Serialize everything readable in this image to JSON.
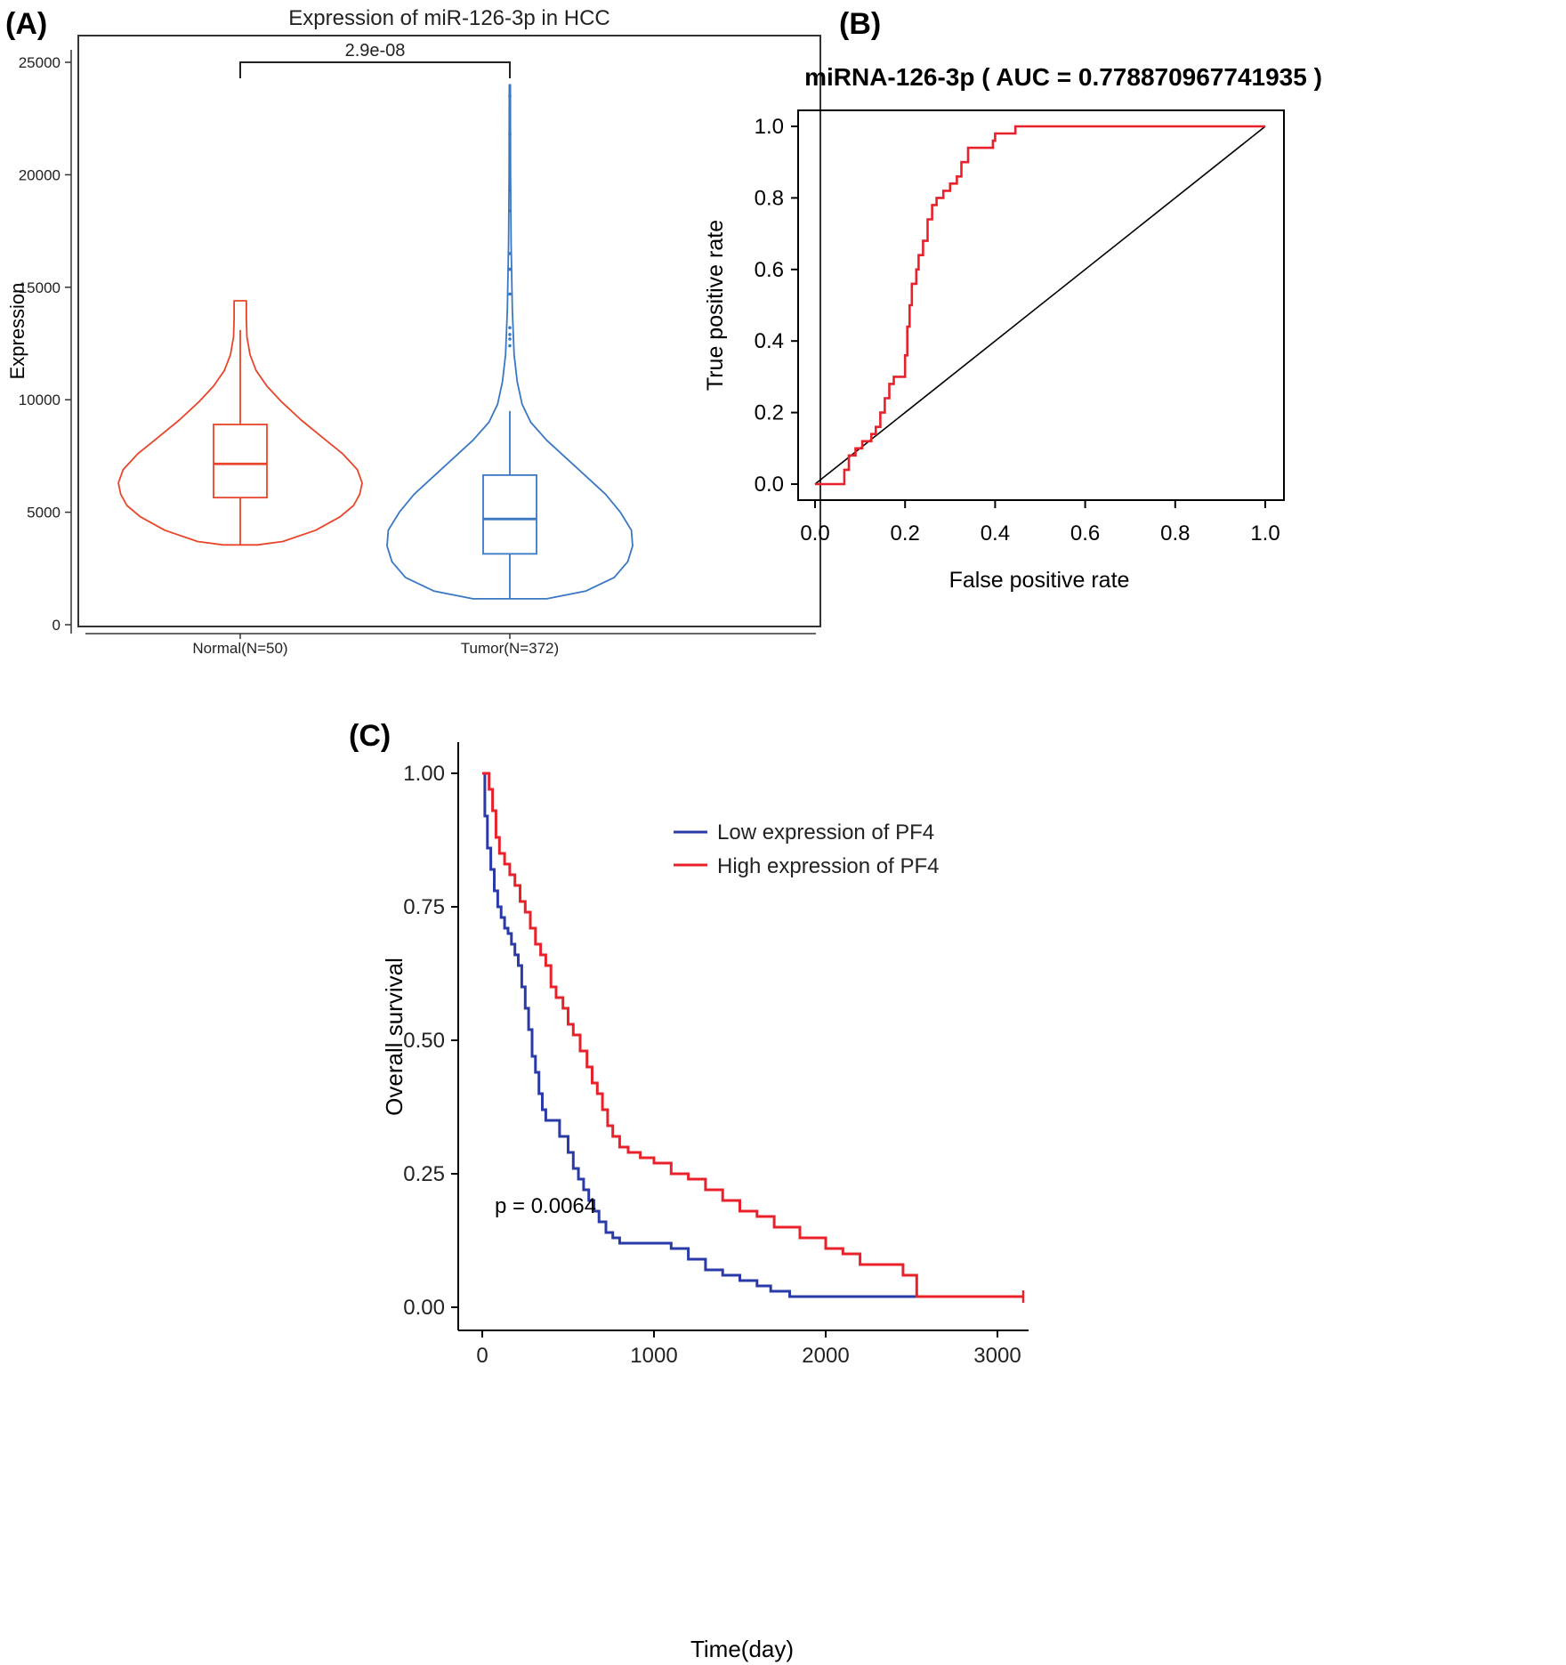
{
  "panels": {
    "A": "(A)",
    "B": "(B)",
    "C": "(C)"
  },
  "chart_data": [
    {
      "id": "A",
      "type": "violin",
      "title": "Expression of miR-126-3p in HCC",
      "ylabel": "Expression",
      "xlabel": "",
      "ylim": [
        0,
        26000
      ],
      "yticks": [
        0,
        5000,
        10000,
        15000,
        20000,
        25000
      ],
      "ytick_labels": [
        "0",
        "5000",
        "10000",
        "15000",
        "20000",
        "25000"
      ],
      "categories": [
        "Normal(N=50)",
        "Tumor(N=372)"
      ],
      "significance": {
        "label": "2.9e-08",
        "y": 25000
      },
      "groups": [
        {
          "name": "Normal(N=50)",
          "color": "#e8452a",
          "box": {
            "whisker_low": 3550,
            "q1": 5650,
            "median": 7150,
            "q3": 8900,
            "whisker_high": 13100
          },
          "max": 14400,
          "violin_width": [
            [
              3550,
              0.14
            ],
            [
              3700,
              0.35
            ],
            [
              4200,
              0.62
            ],
            [
              4800,
              0.82
            ],
            [
              5300,
              0.93
            ],
            [
              5800,
              0.98
            ],
            [
              6300,
              1.0
            ],
            [
              6900,
              0.96
            ],
            [
              7600,
              0.84
            ],
            [
              8300,
              0.68
            ],
            [
              9100,
              0.5
            ],
            [
              9900,
              0.34
            ],
            [
              10600,
              0.22
            ],
            [
              11300,
              0.13
            ],
            [
              12000,
              0.08
            ],
            [
              12800,
              0.055
            ],
            [
              13600,
              0.05
            ],
            [
              14300,
              0.05
            ],
            [
              14400,
              0.05
            ]
          ],
          "outliers": []
        },
        {
          "name": "Tumor(N=372)",
          "color": "#3a78c4",
          "box": {
            "whisker_low": 1150,
            "q1": 3150,
            "median": 4700,
            "q3": 6650,
            "whisker_high": 9500
          },
          "max": 24000,
          "violin_width": [
            [
              1150,
              0.3
            ],
            [
              1500,
              0.62
            ],
            [
              2100,
              0.85
            ],
            [
              2800,
              0.96
            ],
            [
              3500,
              1.0
            ],
            [
              4200,
              0.99
            ],
            [
              5000,
              0.9
            ],
            [
              5800,
              0.78
            ],
            [
              6600,
              0.62
            ],
            [
              7400,
              0.46
            ],
            [
              8200,
              0.3
            ],
            [
              9000,
              0.17
            ],
            [
              9800,
              0.1
            ],
            [
              10800,
              0.06
            ],
            [
              12000,
              0.035
            ],
            [
              14000,
              0.02
            ],
            [
              17000,
              0.01
            ],
            [
              20000,
              0.006
            ],
            [
              24000,
              0.004
            ]
          ],
          "outliers": [
            12400,
            12700,
            12900,
            13200,
            14700,
            15800,
            16500,
            18400,
            19300,
            21800,
            23500
          ]
        }
      ]
    },
    {
      "id": "B",
      "type": "line",
      "title": "miRNA-126-3p ( AUC =  0.778870967741935 )",
      "xlabel": "False positive rate",
      "ylabel": "True positive rate",
      "xlim": [
        0,
        1
      ],
      "ylim": [
        0,
        1
      ],
      "xticks": [
        0,
        0.2,
        0.4,
        0.6,
        0.8,
        1
      ],
      "xtick_labels": [
        "0.0",
        "0.2",
        "0.4",
        "0.6",
        "0.8",
        "1.0"
      ],
      "yticks": [
        0,
        0.2,
        0.4,
        0.6,
        0.8,
        1
      ],
      "ytick_labels": [
        "0.0",
        "0.2",
        "0.4",
        "0.6",
        "0.8",
        "1.0"
      ],
      "series": [
        {
          "color": "#e8212a",
          "x": [
            0,
            0.065,
            0.065,
            0.075,
            0.075,
            0.09,
            0.09,
            0.105,
            0.105,
            0.125,
            0.125,
            0.135,
            0.135,
            0.145,
            0.145,
            0.155,
            0.155,
            0.165,
            0.165,
            0.175,
            0.175,
            0.2,
            0.2,
            0.205,
            0.205,
            0.21,
            0.21,
            0.215,
            0.215,
            0.225,
            0.225,
            0.23,
            0.23,
            0.24,
            0.24,
            0.25,
            0.25,
            0.26,
            0.26,
            0.27,
            0.27,
            0.285,
            0.285,
            0.3,
            0.3,
            0.315,
            0.315,
            0.325,
            0.325,
            0.34,
            0.34,
            0.395,
            0.395,
            0.4,
            0.4,
            0.41,
            0.41,
            0.445,
            0.445,
            1
          ],
          "y": [
            0,
            0,
            0.04,
            0.04,
            0.08,
            0.08,
            0.1,
            0.1,
            0.12,
            0.12,
            0.14,
            0.14,
            0.16,
            0.16,
            0.2,
            0.2,
            0.24,
            0.24,
            0.28,
            0.28,
            0.3,
            0.3,
            0.36,
            0.36,
            0.44,
            0.44,
            0.5,
            0.5,
            0.56,
            0.56,
            0.6,
            0.6,
            0.64,
            0.64,
            0.68,
            0.68,
            0.74,
            0.74,
            0.78,
            0.78,
            0.8,
            0.8,
            0.82,
            0.82,
            0.84,
            0.84,
            0.86,
            0.86,
            0.9,
            0.9,
            0.94,
            0.94,
            0.96,
            0.96,
            0.98,
            0.98,
            0.98,
            0.98,
            1.0,
            1.0
          ]
        },
        {
          "color": "#000000",
          "x": [
            0,
            1
          ],
          "y": [
            0,
            1
          ]
        }
      ]
    },
    {
      "id": "C",
      "type": "line",
      "title": "",
      "xlabel": "Time(day)",
      "ylabel": "Overall survival",
      "xlim": [
        -130,
        3150
      ],
      "ylim": [
        -0.06,
        1.06
      ],
      "xticks": [
        0,
        1000,
        2000,
        3000
      ],
      "xtick_labels": [
        "0",
        "1000",
        "2000",
        "3000"
      ],
      "yticks": [
        0,
        0.25,
        0.5,
        0.75,
        1
      ],
      "ytick_labels": [
        "0.00",
        "0.25",
        "0.50",
        "0.75",
        "1.00"
      ],
      "annotation": "p = 0.0064",
      "legend": {
        "position": "top-right"
      },
      "series": [
        {
          "name": "Low expression of PF4",
          "color": "#2a3aa8",
          "x": [
            0,
            15,
            30,
            50,
            70,
            90,
            110,
            130,
            150,
            170,
            190,
            210,
            230,
            250,
            270,
            290,
            310,
            330,
            350,
            370,
            390,
            410,
            450,
            500,
            530,
            560,
            590,
            620,
            650,
            680,
            720,
            760,
            800,
            860,
            950,
            1100,
            1200,
            1300,
            1400,
            1500,
            1600,
            1680,
            1790,
            2540,
            3150
          ],
          "y": [
            1.0,
            0.92,
            0.86,
            0.82,
            0.78,
            0.75,
            0.73,
            0.71,
            0.7,
            0.68,
            0.66,
            0.64,
            0.6,
            0.56,
            0.52,
            0.47,
            0.44,
            0.4,
            0.37,
            0.35,
            0.35,
            0.35,
            0.32,
            0.29,
            0.26,
            0.24,
            0.22,
            0.2,
            0.18,
            0.16,
            0.14,
            0.13,
            0.12,
            0.12,
            0.12,
            0.11,
            0.09,
            0.07,
            0.06,
            0.05,
            0.04,
            0.03,
            0.02,
            0.02,
            0.02
          ]
        },
        {
          "name": "High expression of PF4",
          "color": "#e8212a",
          "x": [
            0,
            20,
            40,
            60,
            80,
            100,
            130,
            160,
            190,
            220,
            250,
            280,
            310,
            340,
            370,
            400,
            430,
            470,
            500,
            530,
            570,
            610,
            640,
            670,
            700,
            730,
            760,
            800,
            850,
            920,
            1000,
            1100,
            1200,
            1300,
            1400,
            1500,
            1600,
            1700,
            1850,
            2000,
            2100,
            2200,
            2350,
            2450,
            2530,
            3150
          ],
          "y": [
            1.0,
            1.0,
            0.97,
            0.93,
            0.88,
            0.85,
            0.83,
            0.81,
            0.79,
            0.76,
            0.74,
            0.71,
            0.68,
            0.66,
            0.64,
            0.6,
            0.58,
            0.56,
            0.53,
            0.51,
            0.48,
            0.45,
            0.42,
            0.4,
            0.37,
            0.34,
            0.32,
            0.3,
            0.29,
            0.28,
            0.27,
            0.25,
            0.24,
            0.22,
            0.2,
            0.18,
            0.17,
            0.15,
            0.13,
            0.11,
            0.1,
            0.08,
            0.08,
            0.06,
            0.02,
            0.02
          ]
        }
      ]
    }
  ]
}
